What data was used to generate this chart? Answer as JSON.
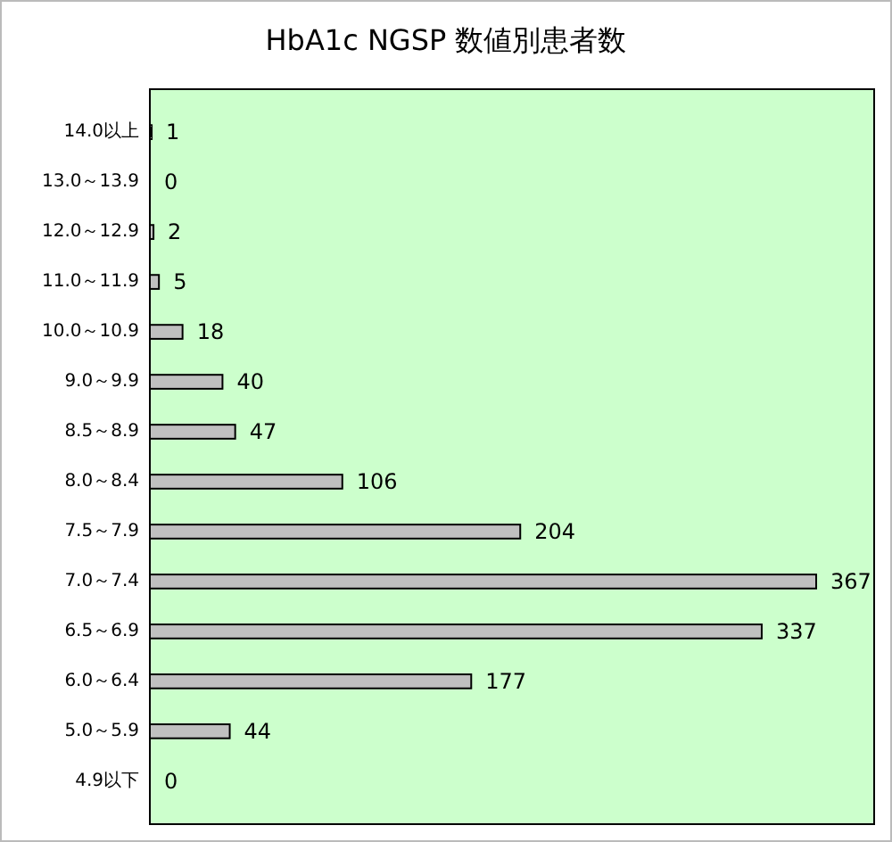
{
  "chart_data": {
    "type": "bar",
    "orientation": "horizontal",
    "title": "HbA1c NGSP 数値別患者数",
    "categories": [
      "14.0以上",
      "13.0～13.9",
      "12.0～12.9",
      "11.0～11.9",
      "10.0～10.9",
      "9.0～9.9",
      "8.5～8.9",
      "8.0～8.4",
      "7.5～7.9",
      "7.0～7.4",
      "6.5～6.9",
      "6.0～6.4",
      "5.0～5.9",
      "4.9以下"
    ],
    "values": [
      1,
      0,
      2,
      5,
      18,
      40,
      47,
      106,
      204,
      367,
      337,
      177,
      44,
      0
    ],
    "color": "#c0c0c0",
    "data_labels": true
  }
}
